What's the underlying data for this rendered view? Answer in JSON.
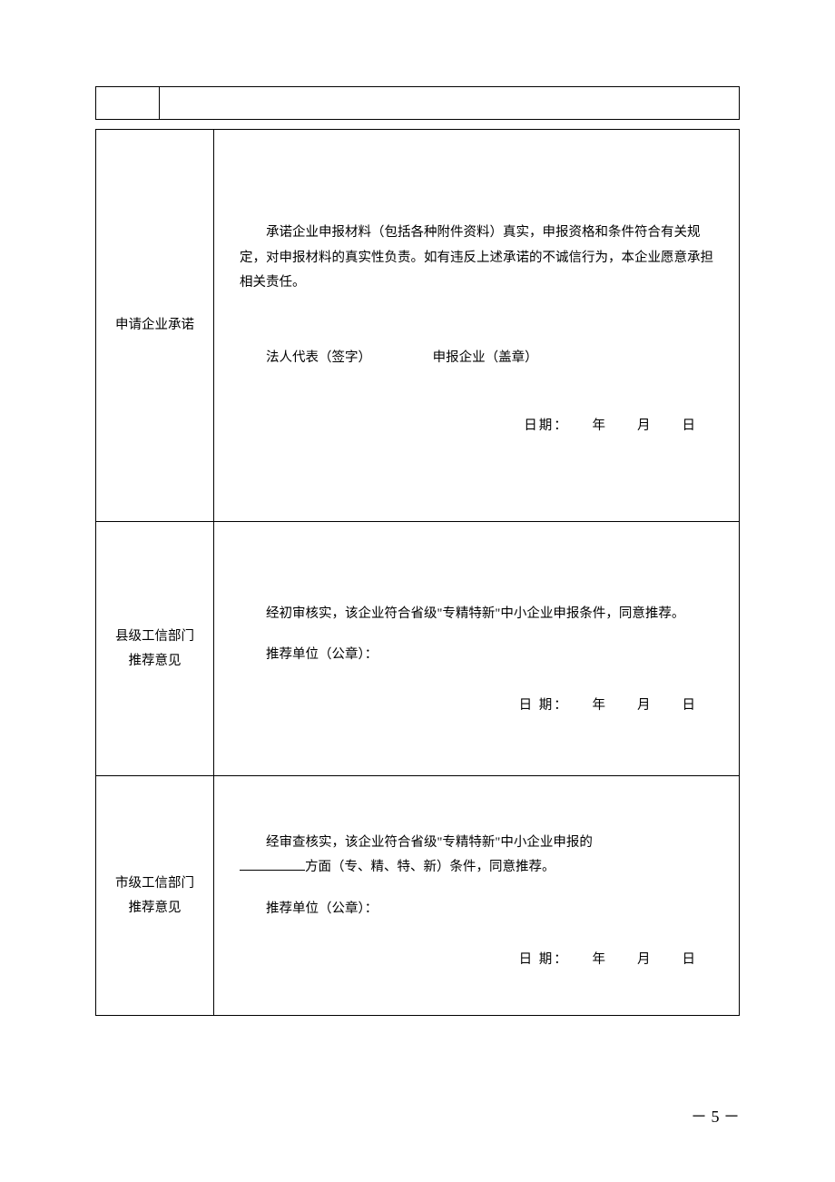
{
  "row1": {
    "label": "申请企业承诺",
    "paragraph": "承诺企业申报材料（包括各种附件资料）真实，申报资格和条件符合有关规定，对申报材料的真实性负责。如有违反上述承诺的不诚信行为，本企业愿意承担相关责任。",
    "sig_left": "法人代表（签字）",
    "sig_right": "申报企业（盖章）",
    "date": "日期：　　年　　月　　日"
  },
  "row2": {
    "label_line1": "县级工信部门",
    "label_line2": "推荐意见",
    "paragraph": "经初审核实，该企业符合省级\"专精特新\"中小企业申报条件，同意推荐。",
    "unit": "推荐单位（公章）：",
    "date": "日 期：　　年　　月　　日"
  },
  "row3": {
    "label_line1": "市级工信部门",
    "label_line2": "推荐意见",
    "para_before": "经审查核实，该企业符合省级\"专精特新\"中小企业申报的",
    "para_after": "方面（专、精、特、新）条件，同意推荐。",
    "unit": "推荐单位（公章）：",
    "date": "日 期：　　年　　月　　日"
  },
  "page_number": "－ 5 －"
}
